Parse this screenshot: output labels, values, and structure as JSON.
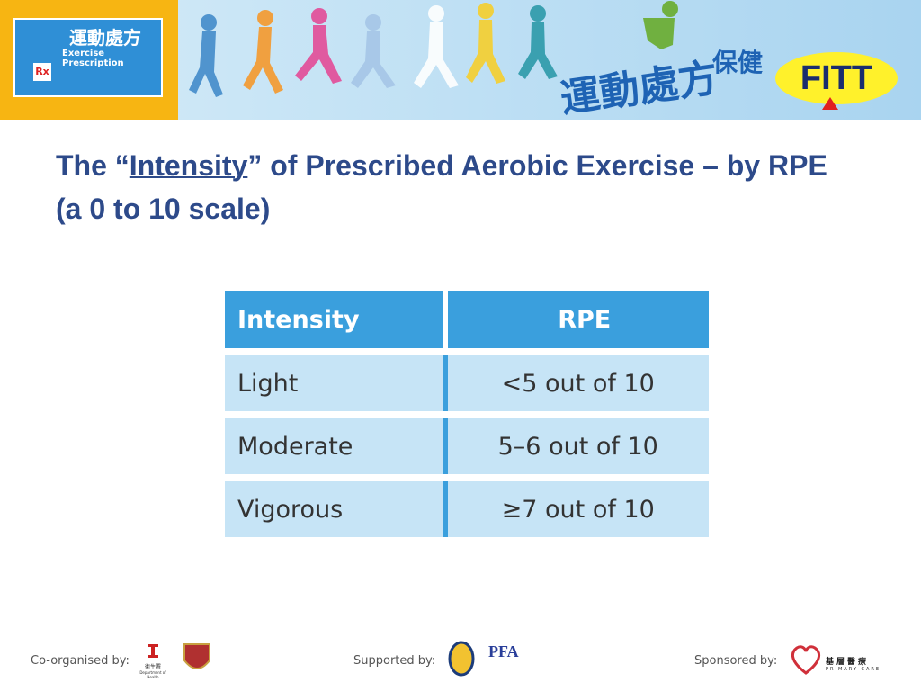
{
  "header": {
    "logo_title": "運動處方",
    "logo_subtitle": "Exercise Prescription",
    "logo_rx": "Rx",
    "banner_title": "運動處方",
    "banner_subtitle": "保健",
    "badge": "FITT"
  },
  "title": {
    "before": "The “",
    "emphasis": "Intensity",
    "after": "” of Prescribed Aerobic Exercise – by RPE (a 0 to 10 scale)"
  },
  "table": {
    "columns": [
      "Intensity",
      "RPE"
    ],
    "rows": [
      [
        "Light",
        "<5 out of 10"
      ],
      [
        "Moderate",
        "5–6 out of 10"
      ],
      [
        "Vigorous",
        "≥7 out of 10"
      ]
    ]
  },
  "footer": {
    "co_organised": "Co-organised by:",
    "doh_cn": "衞生署",
    "doh_en": "Department of Health",
    "supported": "Supported by:",
    "pfa": "PFA",
    "sponsored": "Sponsored by:",
    "pc_cn": "基層醫療",
    "pc_en": "PRIMARY CARE"
  }
}
